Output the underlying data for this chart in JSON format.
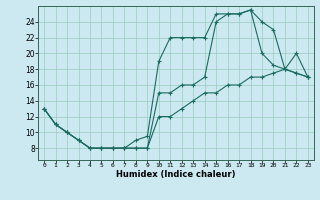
{
  "xlabel": "Humidex (Indice chaleur)",
  "bg_color": "#cce8f0",
  "grid_color": "#99ccbb",
  "line_color": "#1a6b60",
  "xlim": [
    -0.5,
    23.5
  ],
  "ylim": [
    6.5,
    26
  ],
  "yticks": [
    8,
    10,
    12,
    14,
    16,
    18,
    20,
    22,
    24
  ],
  "xticks": [
    0,
    1,
    2,
    3,
    4,
    5,
    6,
    7,
    8,
    9,
    10,
    11,
    12,
    13,
    14,
    15,
    16,
    17,
    18,
    19,
    20,
    21,
    22,
    23
  ],
  "line1_x": [
    0,
    1,
    2,
    3,
    4,
    5,
    6,
    7,
    8,
    9,
    10,
    11,
    12,
    13,
    14,
    15,
    16,
    17,
    18,
    19,
    20,
    21,
    22,
    23
  ],
  "line1_y": [
    13,
    11,
    10,
    9,
    8,
    8,
    8,
    8,
    9,
    9.5,
    19,
    22,
    22,
    22,
    22,
    25,
    25,
    25,
    25.5,
    24,
    23,
    18,
    20,
    17
  ],
  "line2_x": [
    0,
    1,
    2,
    3,
    4,
    5,
    6,
    7,
    8,
    9,
    10,
    11,
    12,
    13,
    14,
    15,
    16,
    17,
    18,
    19,
    20,
    21,
    22,
    23
  ],
  "line2_y": [
    13,
    11,
    10,
    9,
    8,
    8,
    8,
    8,
    8,
    8,
    15,
    15,
    16,
    16,
    17,
    24,
    25,
    25,
    25.5,
    20,
    18.5,
    18,
    17.5,
    17
  ],
  "line3_x": [
    0,
    1,
    2,
    3,
    4,
    5,
    6,
    7,
    8,
    9,
    10,
    11,
    12,
    13,
    14,
    15,
    16,
    17,
    18,
    19,
    20,
    21,
    22,
    23
  ],
  "line3_y": [
    13,
    11,
    10,
    9,
    8,
    8,
    8,
    8,
    8,
    8,
    12,
    12,
    13,
    14,
    15,
    15,
    16,
    16,
    17,
    17,
    17.5,
    18,
    17.5,
    17
  ]
}
